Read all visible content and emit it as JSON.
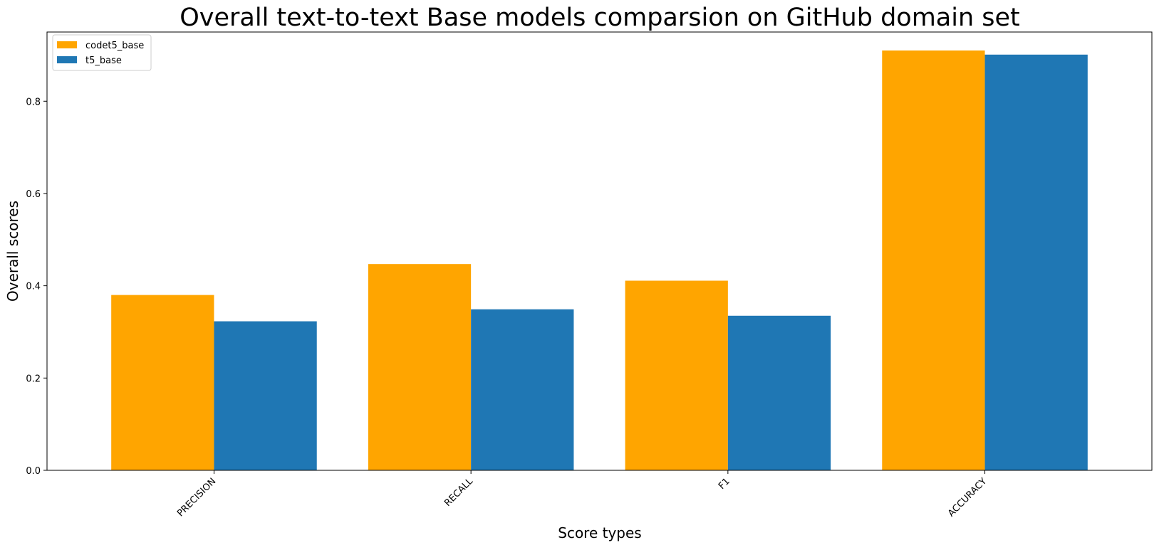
{
  "chart_data": {
    "type": "bar",
    "title": "Overall text-to-text Base models comparsion on GitHub domain set",
    "xlabel": "Score types",
    "ylabel": "Overall scores",
    "categories": [
      "PRECISION",
      "RECALL",
      "F1",
      "ACCURACY"
    ],
    "series": [
      {
        "name": "codet5_base",
        "color": "#ffa500",
        "values": [
          0.38,
          0.447,
          0.411,
          0.91
        ]
      },
      {
        "name": "t5_base",
        "color": "#1f77b4",
        "values": [
          0.323,
          0.349,
          0.335,
          0.901
        ]
      }
    ],
    "ylim": [
      0,
      0.95
    ],
    "yticks": [
      0.0,
      0.2,
      0.4,
      0.6,
      0.8
    ],
    "ytick_labels": [
      "0.0",
      "0.2",
      "0.4",
      "0.6",
      "0.8"
    ],
    "grid": false,
    "legend_position": "top-left"
  }
}
